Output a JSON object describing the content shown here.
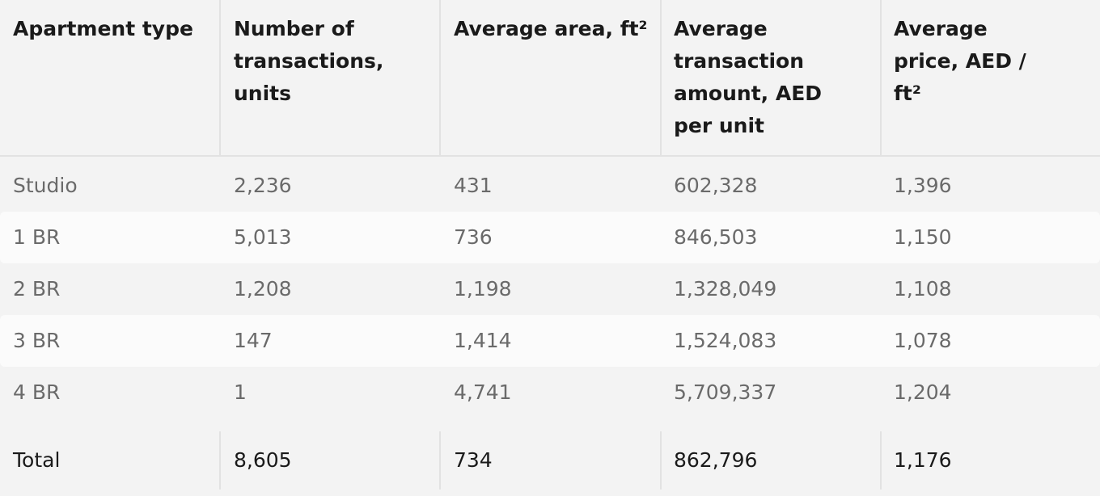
{
  "table": {
    "headers": [
      "Apartment type",
      "Number of transactions, units",
      "Average area, ft²",
      "Average transaction amount, AED per unit",
      "Average price, AED / ft²"
    ],
    "rows": [
      [
        "Studio",
        "2,236",
        "431",
        "602,328",
        "1,396"
      ],
      [
        "1 BR",
        "5,013",
        "736",
        "846,503",
        "1,150"
      ],
      [
        "2 BR",
        "1,208",
        "1,198",
        "1,328,049",
        "1,108"
      ],
      [
        "3 BR",
        "147",
        "1,414",
        "1,524,083",
        "1,078"
      ],
      [
        "4 BR",
        "1",
        "4,741",
        "5,709,337",
        "1,204"
      ]
    ],
    "total": [
      "Total",
      "8,605",
      "734",
      "862,796",
      "1,176"
    ]
  }
}
